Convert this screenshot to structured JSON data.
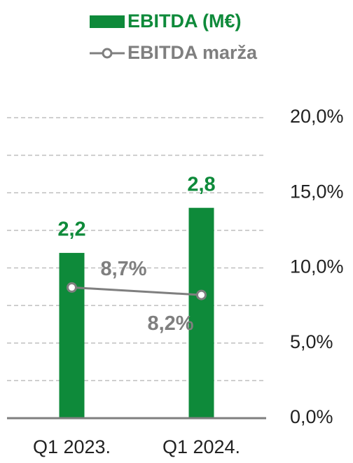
{
  "chart_data": {
    "type": "bar-line",
    "categories": [
      "Q1 2023.",
      "Q1 2024."
    ],
    "series": [
      {
        "name": "EBITDA (M€)",
        "type": "bar",
        "color": "#0e8a3a",
        "values": [
          2.2,
          2.8
        ],
        "value_labels": [
          "2,2",
          "2,8"
        ]
      },
      {
        "name": "EBITDA marža",
        "type": "line",
        "axis": "y2",
        "color": "#7f7f7f",
        "values": [
          8.7,
          8.2
        ],
        "value_labels": [
          "8,7%",
          "8,2%"
        ]
      }
    ],
    "ylim": [
      0,
      4
    ],
    "yticks": [
      0,
      0.5,
      1,
      1.5,
      2,
      2.5,
      3,
      3.5,
      4
    ],
    "y2lim": [
      0,
      20
    ],
    "y2ticks": [
      {
        "value": 0,
        "label": "0,0%"
      },
      {
        "value": 5,
        "label": "5,0%"
      },
      {
        "value": 10,
        "label": "10,0%"
      },
      {
        "value": 15,
        "label": "15,0%"
      },
      {
        "value": 20,
        "label": "20,0%"
      }
    ],
    "grid": true,
    "legend": "top"
  }
}
